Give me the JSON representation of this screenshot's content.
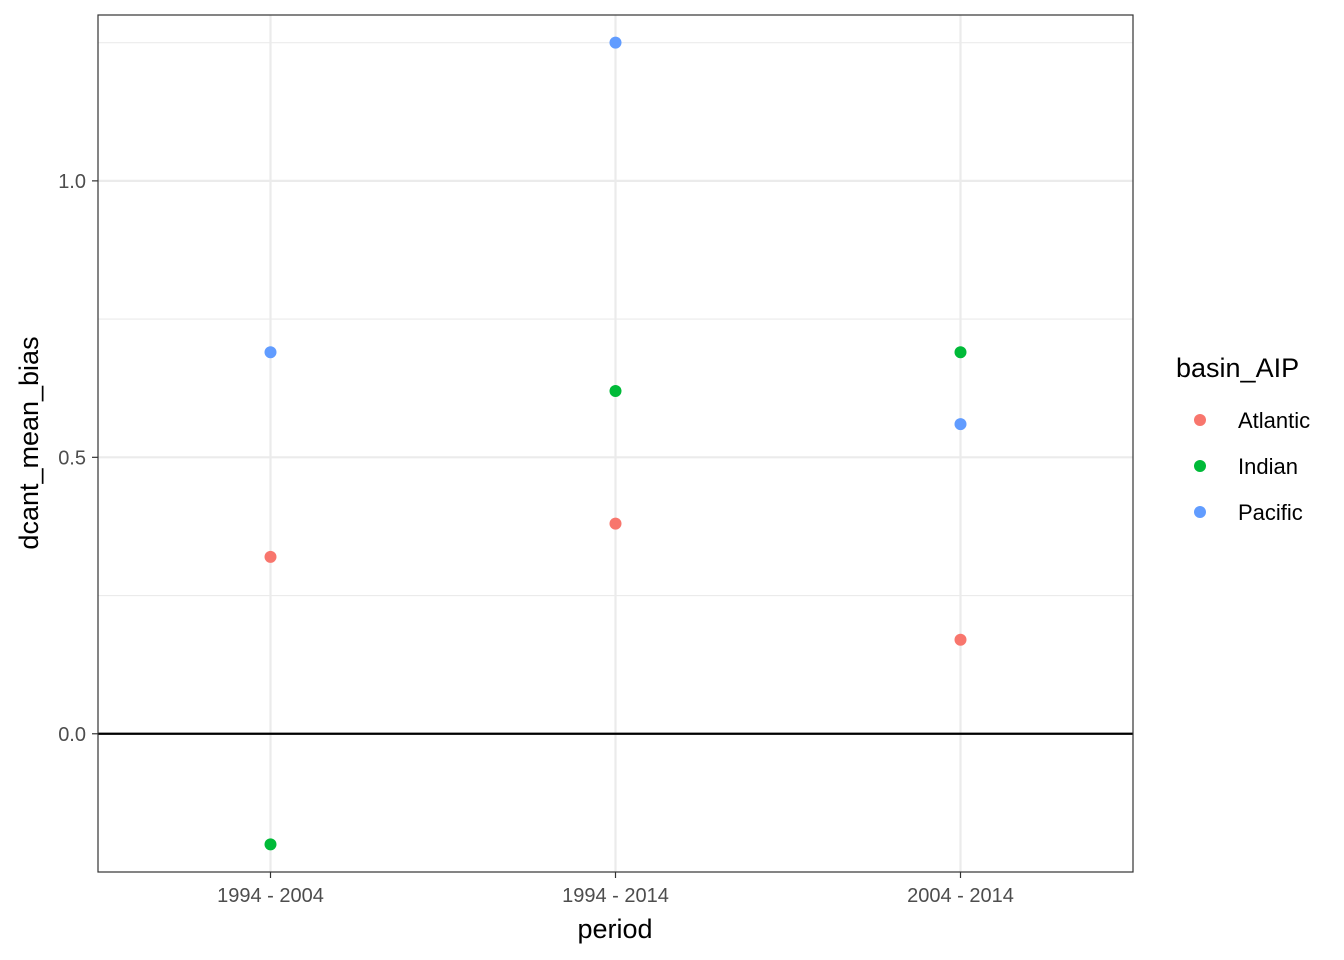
{
  "chart_data": {
    "type": "scatter",
    "title": "",
    "xlabel": "period",
    "ylabel": "dcant_mean_bias",
    "categories": [
      "1994 - 2004",
      "1994 - 2014",
      "2004 - 2014"
    ],
    "ylim": [
      -0.25,
      1.3
    ],
    "yticks": [
      0.0,
      0.5,
      1.0
    ],
    "ytick_labels": [
      "0.0",
      "0.5",
      "1.0"
    ],
    "y_minor_ticks": [
      -0.25,
      0.25,
      0.75,
      1.25
    ],
    "hline": 0,
    "grid": true,
    "legend": {
      "title": "basin_AIP",
      "position": "right"
    },
    "series": [
      {
        "name": "Atlantic",
        "color": "#F8766D",
        "values": [
          0.32,
          0.38,
          0.17
        ]
      },
      {
        "name": "Indian",
        "color": "#00BA38",
        "values": [
          -0.2,
          0.62,
          0.69
        ]
      },
      {
        "name": "Pacific",
        "color": "#619CFF",
        "values": [
          0.69,
          1.25,
          0.56
        ]
      }
    ]
  }
}
